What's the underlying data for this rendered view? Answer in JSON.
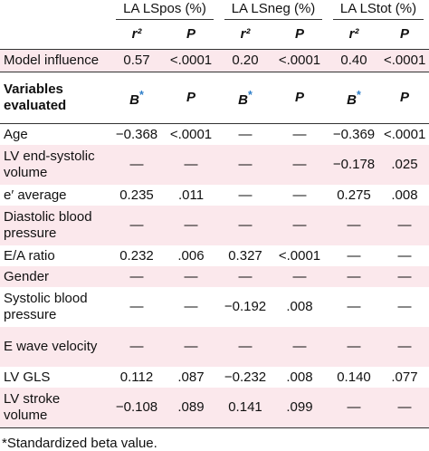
{
  "table": {
    "groups": [
      "LA LSpos (%)",
      "LA LSneg (%)",
      "LA LStot (%)"
    ],
    "subheaders": [
      "r²",
      "P",
      "r²",
      "P",
      "r²",
      "P"
    ],
    "model_influence": {
      "label": "Model influence",
      "values": [
        "0.57",
        "<.0001",
        "0.20",
        "<.0001",
        "0.40",
        "<.0001"
      ]
    },
    "variables_header": {
      "label": "Variables evaluated",
      "columns": [
        "B",
        "P",
        "B",
        "P",
        "B",
        "P"
      ],
      "marker": "*"
    },
    "rows": [
      [
        "Age",
        "−0.368",
        "<.0001",
        "—",
        "—",
        "−0.369",
        "<.0001"
      ],
      [
        "LV end-systolic volume",
        "—",
        "—",
        "—",
        "—",
        "−0.178",
        ".025"
      ],
      [
        "e′ average",
        "0.235",
        ".011",
        "—",
        "—",
        "0.275",
        ".008"
      ],
      [
        "Diastolic blood pressure",
        "—",
        "—",
        "—",
        "—",
        "—",
        "—"
      ],
      [
        "E/A ratio",
        "0.232",
        ".006",
        "0.327",
        "<.0001",
        "—",
        "—"
      ],
      [
        "Gender",
        "—",
        "—",
        "—",
        "—",
        "—",
        "—"
      ],
      [
        "Systolic blood pressure",
        "—",
        "—",
        "−0.192",
        ".008",
        "—",
        "—"
      ],
      [
        "E wave velocity",
        "—",
        "—",
        "—",
        "—",
        "—",
        "—"
      ],
      [
        "LV GLS",
        "0.112",
        ".087",
        "−0.232",
        ".008",
        "0.140",
        ".077"
      ],
      [
        "LV stroke volume",
        "−0.108",
        ".089",
        "0.141",
        ".099",
        "—",
        "—"
      ]
    ],
    "footnote": "*Standardized beta value."
  }
}
